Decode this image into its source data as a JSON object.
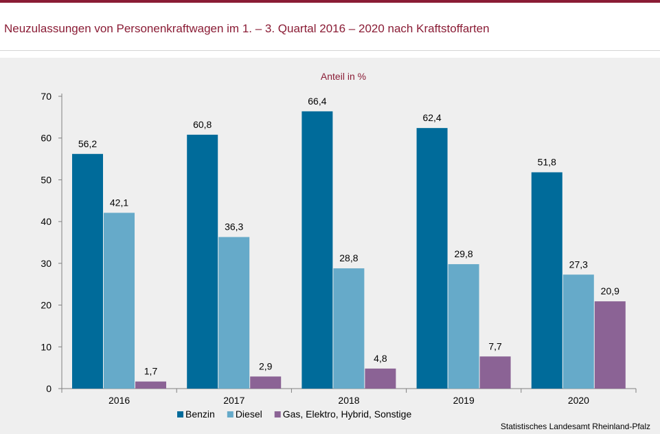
{
  "title": "Neuzulassungen von Personenkraftwagen im 1. – 3. Quartal 2016 – 2020 nach Kraftstoffarten",
  "source": "Statistisches Landesamt Rheinland-Pfalz",
  "chart_data": {
    "type": "bar",
    "unit_label": "Anteil in %",
    "categories": [
      "2016",
      "2017",
      "2018",
      "2019",
      "2020"
    ],
    "ylim": [
      0,
      70
    ],
    "yticks": [
      0,
      10,
      20,
      30,
      40,
      50,
      60,
      70
    ],
    "grid": false,
    "legend_position": "bottom",
    "series": [
      {
        "name": "Benzin",
        "color": "#006b9a",
        "values": [
          56.2,
          60.8,
          66.4,
          62.4,
          51.8
        ],
        "labels": [
          "56,2",
          "60,8",
          "66,4",
          "62,4",
          "51,8"
        ]
      },
      {
        "name": "Diesel",
        "color": "#66aac9",
        "values": [
          42.1,
          36.3,
          28.8,
          29.8,
          27.3
        ],
        "labels": [
          "42,1",
          "36,3",
          "28,8",
          "29,8",
          "27,3"
        ]
      },
      {
        "name": "Gas, Elektro, Hybrid, Sonstige",
        "color": "#8b6395",
        "values": [
          1.7,
          2.9,
          4.8,
          7.7,
          20.9
        ],
        "labels": [
          "1,7",
          "2,9",
          "4,8",
          "7,7",
          "20,9"
        ]
      }
    ]
  }
}
